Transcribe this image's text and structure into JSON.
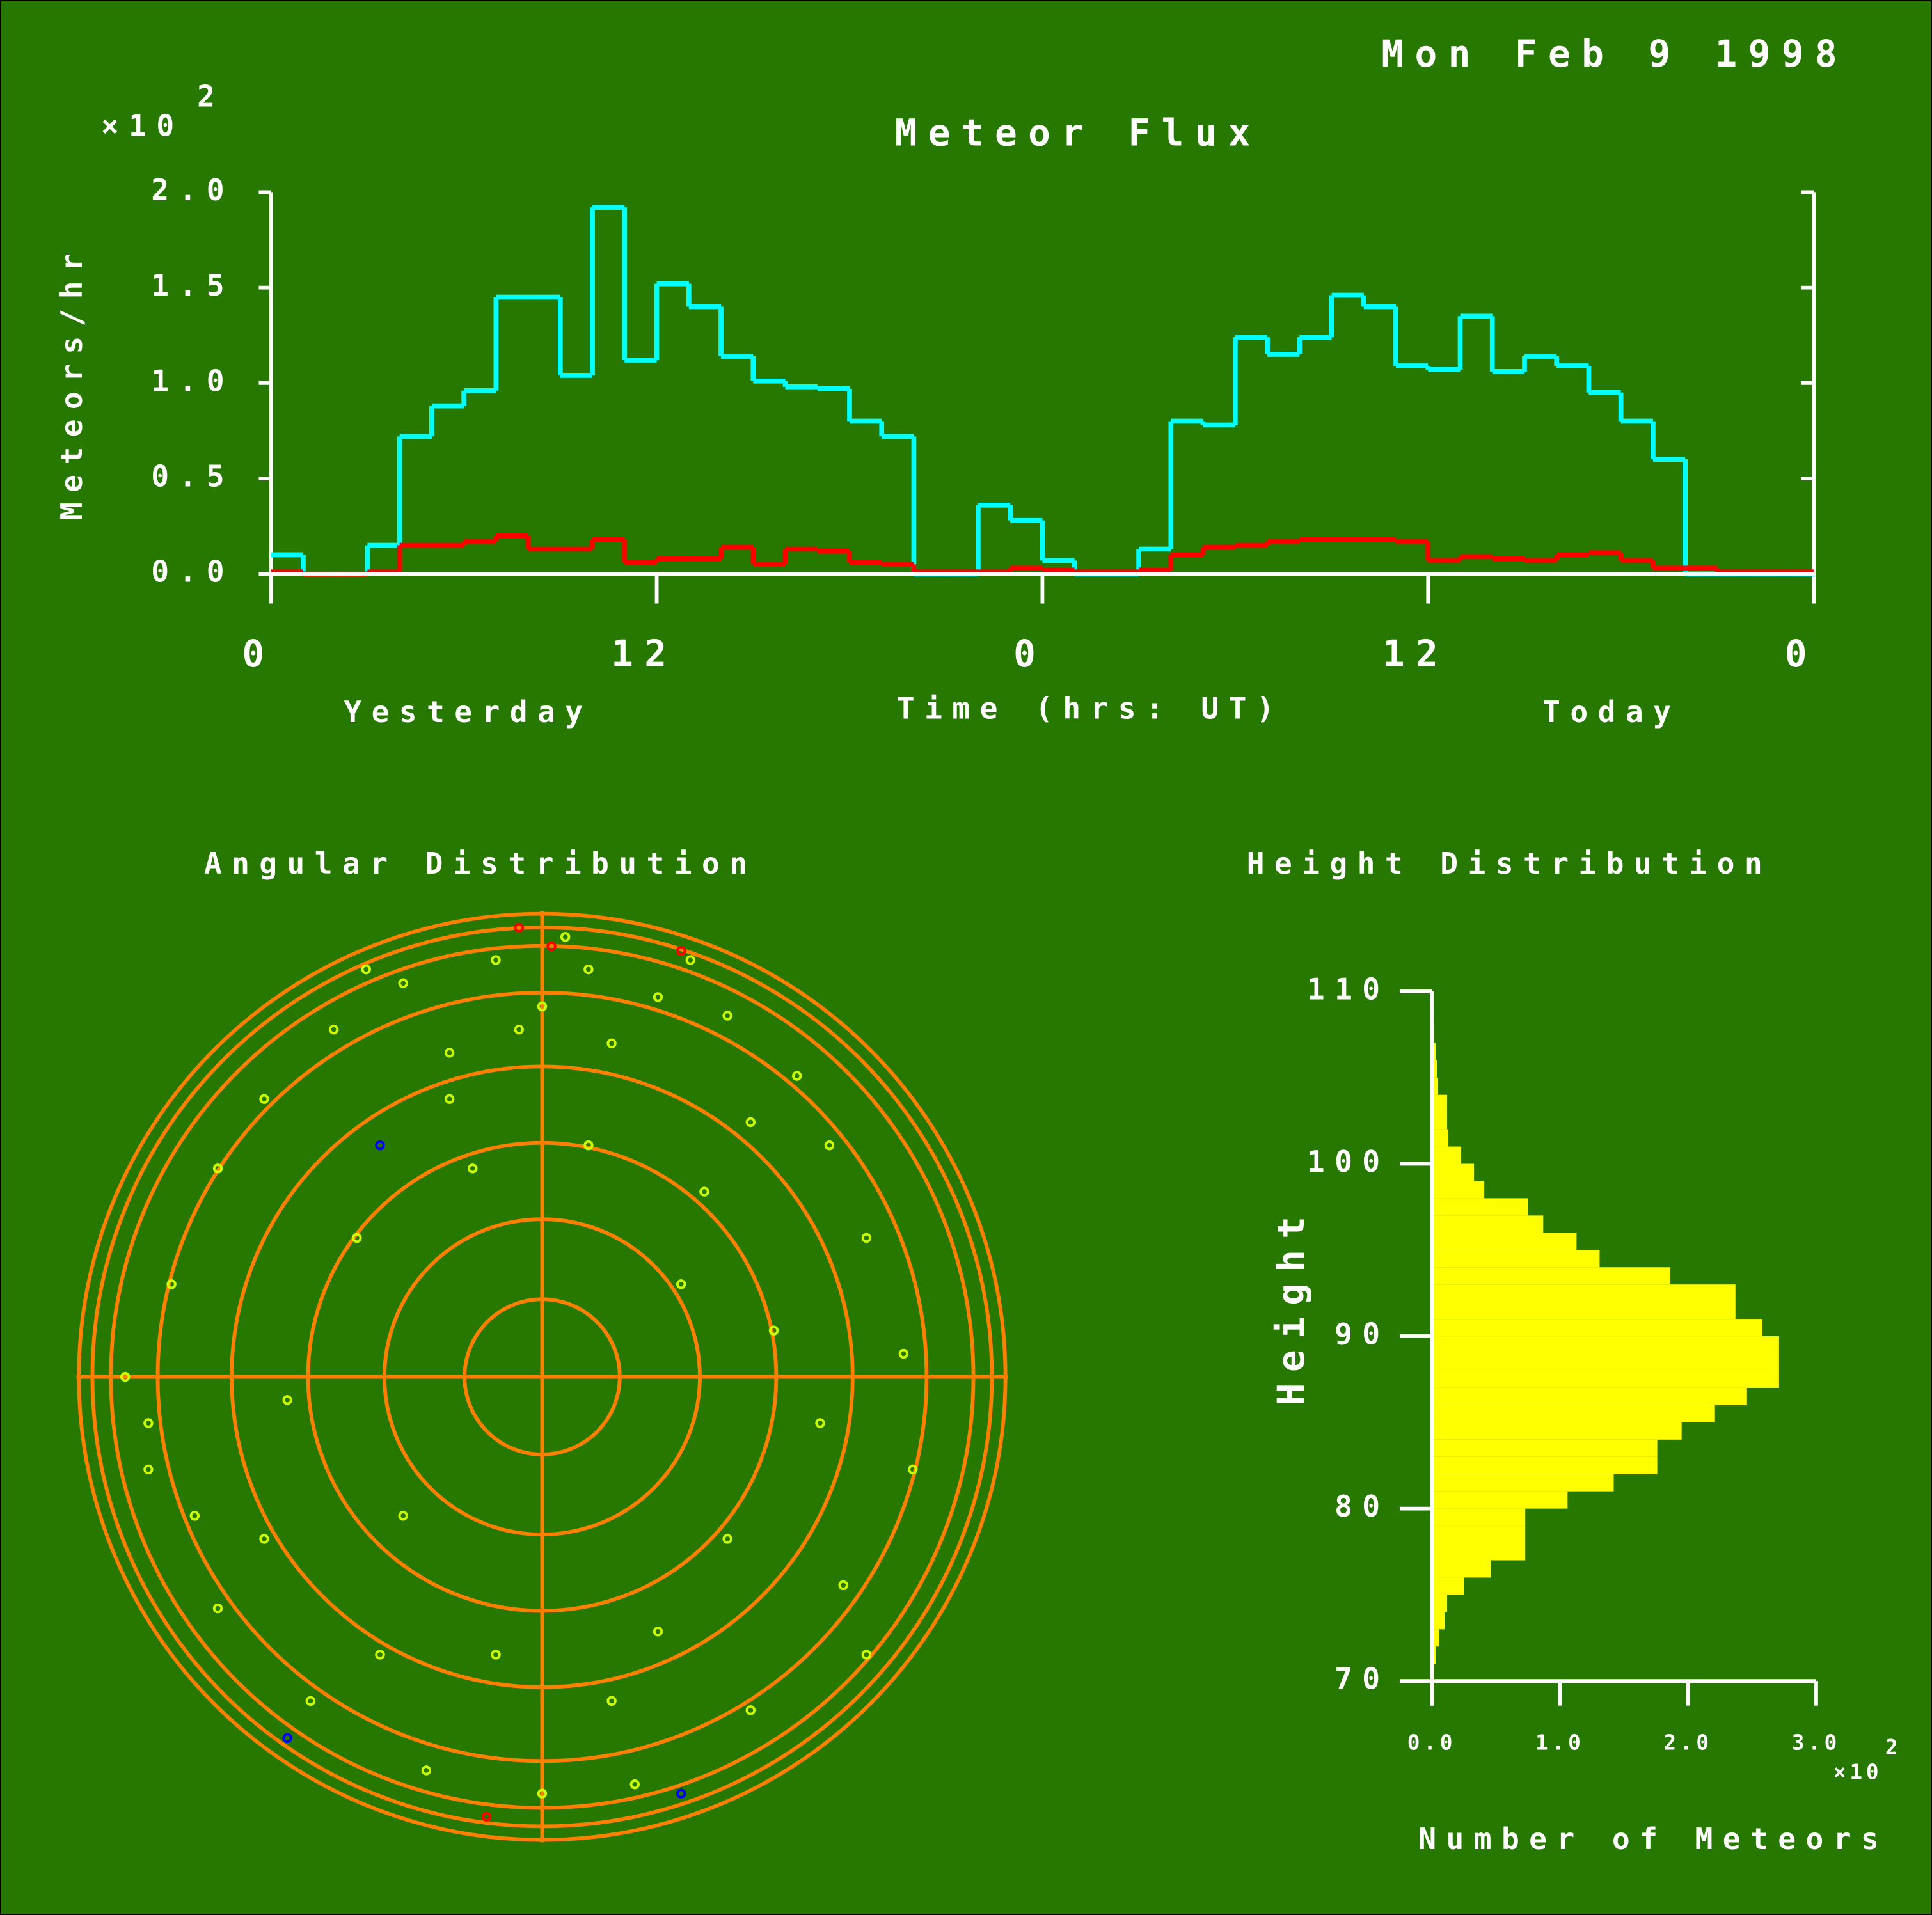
{
  "date": "Mon Feb  9 1998",
  "chart_data": [
    {
      "type": "histogram",
      "title": "Meteor Flux",
      "y_label": "Meteors/hr",
      "y_multiplier": "×10",
      "y_multiplier_exponent": "2",
      "x_label": "Time (hrs: UT)",
      "annotations": [
        "Yesterday",
        "Today"
      ],
      "bins": [
        0,
        1,
        2,
        3,
        4,
        5,
        6,
        7,
        8,
        9,
        10,
        11,
        12,
        13,
        14,
        15,
        16,
        17,
        18,
        19,
        20,
        21,
        22,
        23,
        24,
        25,
        26,
        27,
        28,
        29,
        30,
        31,
        32,
        33,
        34,
        35,
        36,
        37,
        38,
        39,
        40,
        41,
        42,
        43,
        44,
        45,
        46,
        47,
        48
      ],
      "series": [
        {
          "color": "#00ffff",
          "values": [
            0.1,
            0,
            0,
            0.15,
            0.72,
            0.88,
            0.96,
            1.45,
            1.45,
            1.04,
            1.92,
            1.12,
            1.52,
            1.4,
            1.14,
            1.01,
            0.98,
            0.97,
            0.8,
            0.72,
            0,
            0,
            0.36,
            0.28,
            0.07,
            0,
            0,
            0.13,
            0.8,
            0.78,
            1.24,
            1.15,
            1.24,
            1.46,
            1.4,
            1.09,
            1.07,
            1.35,
            1.06,
            1.14,
            1.09,
            0.95,
            0.8,
            0.6,
            0,
            0,
            0,
            0
          ]
        },
        {
          "color": "#ff0000",
          "values": [
            0.01,
            0,
            0,
            0.01,
            0.15,
            0.15,
            0.17,
            0.2,
            0.13,
            0.13,
            0.18,
            0.06,
            0.08,
            0.08,
            0.14,
            0.05,
            0.13,
            0.12,
            0.06,
            0.05,
            0.01,
            0.01,
            0.01,
            0.03,
            0.02,
            0.01,
            0.01,
            0.02,
            0.1,
            0.14,
            0.15,
            0.17,
            0.18,
            0.18,
            0.18,
            0.17,
            0.07,
            0.09,
            0.08,
            0.07,
            0.1,
            0.11,
            0.07,
            0.03,
            0.03,
            0.01,
            0.01,
            0.01
          ]
        }
      ],
      "xlim": [
        0,
        48
      ],
      "xticks": [
        0,
        12,
        {
          "value": 24,
          "label": "0"
        },
        {
          "value": 36,
          "label": "12"
        },
        {
          "value": 48,
          "label": "0"
        }
      ],
      "ylim": [
        0,
        2
      ],
      "yticks": [
        {
          "value": 0,
          "label": "0.0"
        },
        {
          "value": 0.5,
          "label": "0.5"
        },
        {
          "value": 1,
          "label": "1.0"
        },
        {
          "value": 1.5,
          "label": "1.5"
        },
        {
          "value": 2,
          "label": "2.0"
        }
      ]
    },
    {
      "type": "polar_scatter",
      "title": "Angular Distribution",
      "series": [
        {
          "color": "#ccff00",
          "x": [
            -0.3,
            -0.1,
            0.1,
            0.25,
            0.4,
            -0.45,
            0.0,
            0.15,
            -0.2,
            0.55,
            -0.6,
            0.05,
            -0.05,
            0.32,
            -0.38,
            0.62,
            -0.7,
            0.7,
            -0.8,
            0.78,
            -0.85,
            -0.75,
            0.8,
            -0.7,
            0.65,
            -0.5,
            0.45,
            -0.25,
            0.2,
            0.0,
            -0.4,
            0.35,
            -0.3,
            0.4,
            0.1,
            -0.15,
            0.5,
            -0.55,
            0.25,
            -0.6,
            0.6,
            -0.2,
            0.45,
            -0.85,
            -0.9,
            0.15,
            -0.1,
            0.3,
            -0.35,
            0.7
          ],
          "y": [
            0.85,
            0.9,
            0.88,
            0.82,
            0.78,
            0.75,
            0.8,
            0.72,
            0.7,
            0.65,
            0.6,
            0.95,
            0.75,
            0.9,
            0.88,
            0.5,
            0.45,
            0.3,
            0.2,
            0.05,
            -0.1,
            -0.3,
            -0.2,
            -0.5,
            -0.45,
            -0.7,
            -0.72,
            -0.85,
            -0.88,
            -0.9,
            0.3,
            0.4,
            -0.3,
            -0.35,
            0.5,
            0.45,
            0.1,
            -0.05,
            -0.55,
            -0.35,
            -0.1,
            0.6,
            0.55,
            -0.2,
            0.0,
            -0.7,
            -0.6,
            0.2,
            -0.6,
            -0.6
          ]
        },
        {
          "color": "#ff0000",
          "x": [
            -0.05,
            0.02,
            0.3,
            -0.12
          ],
          "y": [
            0.97,
            0.93,
            0.92,
            -0.95
          ]
        },
        {
          "color": "#0000ff",
          "x": [
            -0.35,
            0.3,
            -0.55
          ],
          "y": [
            0.5,
            -0.9,
            -0.78
          ]
        }
      ]
    },
    {
      "type": "histogram",
      "orientation": "horizontal",
      "title": "Height Distribution",
      "y_label": "Height",
      "x_label": "Number of Meteors",
      "x_multiplier": "×10",
      "x_multiplier_exponent": "2",
      "bins": [
        70,
        71,
        72,
        73,
        74,
        75,
        76,
        77,
        78,
        79,
        80,
        81,
        82,
        83,
        84,
        85,
        86,
        87,
        88,
        89,
        90,
        91,
        92,
        93,
        94,
        95,
        96,
        97,
        98,
        99,
        100,
        101,
        102,
        103,
        104,
        105,
        106,
        107,
        108,
        109,
        110
      ],
      "color": "#ffff00",
      "values": [
        0.02,
        0.03,
        0.06,
        0.1,
        0.12,
        0.25,
        0.46,
        0.73,
        0.73,
        0.73,
        1.06,
        1.42,
        1.76,
        1.76,
        1.95,
        2.21,
        2.46,
        2.71,
        2.71,
        2.71,
        2.58,
        2.37,
        2.37,
        1.86,
        1.31,
        1.13,
        0.87,
        0.75,
        0.41,
        0.33,
        0.23,
        0.13,
        0.12,
        0.12,
        0.05,
        0.04,
        0.03,
        0.02,
        0.01,
        0.01
      ],
      "xlim": [
        0,
        3
      ],
      "xticks": [
        {
          "value": 0,
          "label": "0.0"
        },
        {
          "value": 1,
          "label": "1.0"
        },
        {
          "value": 2,
          "label": "2.0"
        },
        {
          "value": 3,
          "label": "3.0"
        }
      ],
      "ylim": [
        70,
        110
      ],
      "yticks": [
        70,
        80,
        90,
        100,
        110
      ]
    }
  ]
}
